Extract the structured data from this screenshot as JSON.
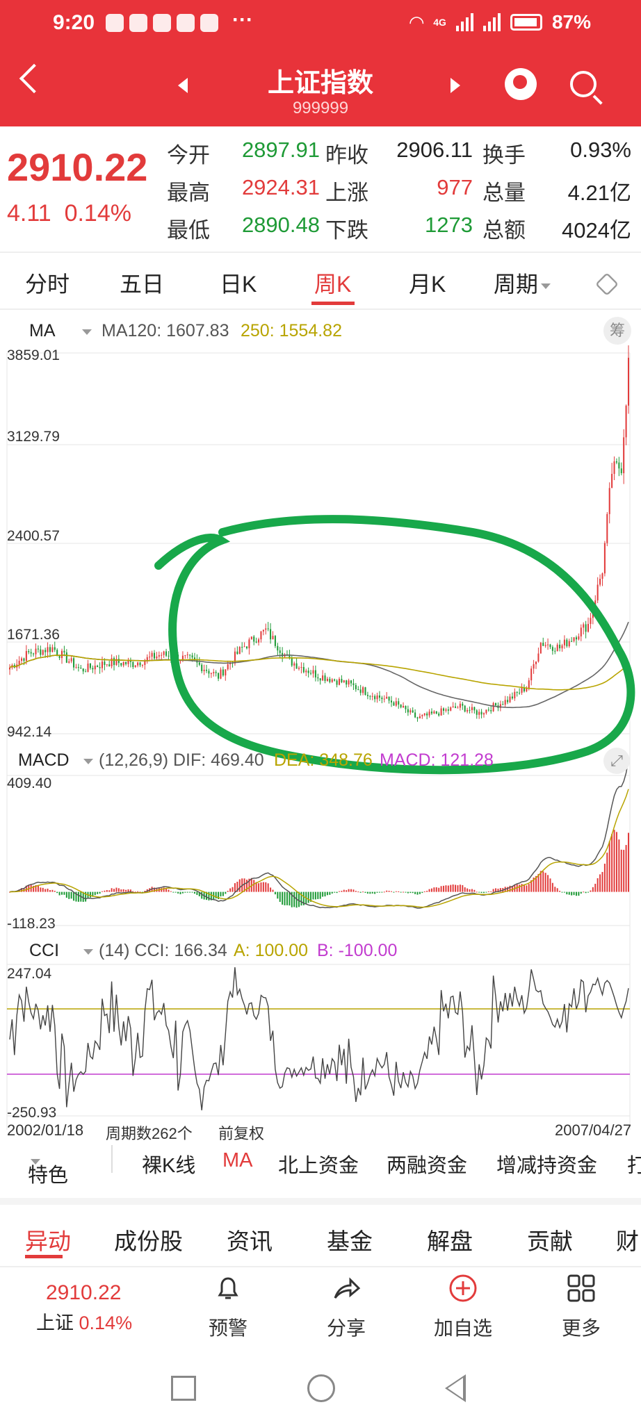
{
  "status": {
    "time": "9:20",
    "more": "···",
    "net": "4G",
    "battery": "87%"
  },
  "header": {
    "title": "上证指数",
    "code": "999999"
  },
  "quote": {
    "price": "2910.22",
    "change": "4.11",
    "change_pct": "0.14%",
    "rows": [
      [
        {
          "label": "今开",
          "value": "2897.91",
          "color": "green"
        },
        {
          "label": "昨收",
          "value": "2906.11",
          "color": "dark"
        },
        {
          "label": "换手",
          "value": "0.93%",
          "color": "dark"
        }
      ],
      [
        {
          "label": "最高",
          "value": "2924.31",
          "color": "red"
        },
        {
          "label": "上涨",
          "value": "977",
          "color": "red"
        },
        {
          "label": "总量",
          "value": "4.21亿",
          "color": "dark"
        }
      ],
      [
        {
          "label": "最低",
          "value": "2890.48",
          "color": "green"
        },
        {
          "label": "下跌",
          "value": "1273",
          "color": "green"
        },
        {
          "label": "总额",
          "value": "4024亿",
          "color": "dark"
        }
      ]
    ]
  },
  "tabs": [
    "分时",
    "五日",
    "日K",
    "周K",
    "月K",
    "周期"
  ],
  "active_tab": "周K",
  "ma_header": {
    "name": "MA",
    "ma120": "MA120: 1607.83",
    "ma250": "250: 1554.82",
    "chip": "筹"
  },
  "macd_header": {
    "name": "MACD",
    "params": "(12,26,9) DIF: 469.40",
    "dea": "DEA: 348.76",
    "macd": "MACD: 121.28"
  },
  "cci_header": {
    "name": "CCI",
    "params": "(14) CCI: 166.34",
    "a": "A: 100.00",
    "b": "B: -100.00"
  },
  "axes": {
    "price": [
      "3859.01",
      "3129.79",
      "2400.57",
      "1671.36",
      "942.14"
    ],
    "macd": [
      "409.40",
      "-118.23"
    ],
    "cci": [
      "247.04",
      "-250.93"
    ],
    "date_start": "2002/01/18",
    "period_count": "周期数262个",
    "adjust": "前复权",
    "date_end": "2007/04/27"
  },
  "chart_data": {
    "type": "candlestick",
    "x_start": "2002/01/18",
    "x_end": "2007/04/27",
    "periods": 262,
    "ylim": [
      942.14,
      3859.01
    ],
    "close_anchors": [
      {
        "i": 0,
        "v": 1450
      },
      {
        "i": 8,
        "v": 1560
      },
      {
        "i": 18,
        "v": 1600
      },
      {
        "i": 30,
        "v": 1430
      },
      {
        "i": 42,
        "v": 1490
      },
      {
        "i": 52,
        "v": 1480
      },
      {
        "i": 64,
        "v": 1550
      },
      {
        "i": 76,
        "v": 1510
      },
      {
        "i": 88,
        "v": 1380
      },
      {
        "i": 98,
        "v": 1600
      },
      {
        "i": 108,
        "v": 1735
      },
      {
        "i": 118,
        "v": 1500
      },
      {
        "i": 130,
        "v": 1390
      },
      {
        "i": 142,
        "v": 1330
      },
      {
        "i": 152,
        "v": 1250
      },
      {
        "i": 162,
        "v": 1180
      },
      {
        "i": 172,
        "v": 1060
      },
      {
        "i": 180,
        "v": 1100
      },
      {
        "i": 190,
        "v": 1150
      },
      {
        "i": 198,
        "v": 1100
      },
      {
        "i": 210,
        "v": 1200
      },
      {
        "i": 218,
        "v": 1300
      },
      {
        "i": 224,
        "v": 1640
      },
      {
        "i": 232,
        "v": 1600
      },
      {
        "i": 238,
        "v": 1690
      },
      {
        "i": 244,
        "v": 1780
      },
      {
        "i": 250,
        "v": 2200
      },
      {
        "i": 254,
        "v": 2950
      },
      {
        "i": 258,
        "v": 3000
      },
      {
        "i": 261,
        "v": 3780
      }
    ],
    "ma_lines": [
      {
        "name": "MA120",
        "value": 1607.83,
        "color": "#666666"
      },
      {
        "name": "250",
        "value": 1554.82,
        "color": "#b8a400"
      }
    ],
    "macd": {
      "dif": 469.4,
      "dea": 348.76,
      "macd": 121.28,
      "ylim": [
        -118.23,
        409.4
      ]
    },
    "cci": {
      "value": 166.34,
      "a": 100.0,
      "b": -100.0,
      "ylim": [
        -250.93,
        247.04
      ]
    }
  },
  "toolbar": {
    "special": "特色",
    "items": [
      "裸K线",
      "MA",
      "北上资金",
      "两融资金",
      "增减持资金",
      "打"
    ]
  },
  "bottom_tabs": [
    "异动",
    "成份股",
    "资讯",
    "基金",
    "解盘",
    "贡献",
    "财"
  ],
  "footer": {
    "price": "2910.22",
    "label": "上证",
    "pct": "0.14%",
    "items": [
      "预警",
      "分享",
      "加自选",
      "更多"
    ]
  },
  "colors": {
    "up": "#e23b3b",
    "down": "#1e9a36",
    "brand": "#e8333a",
    "annotation": "#18a84a"
  }
}
